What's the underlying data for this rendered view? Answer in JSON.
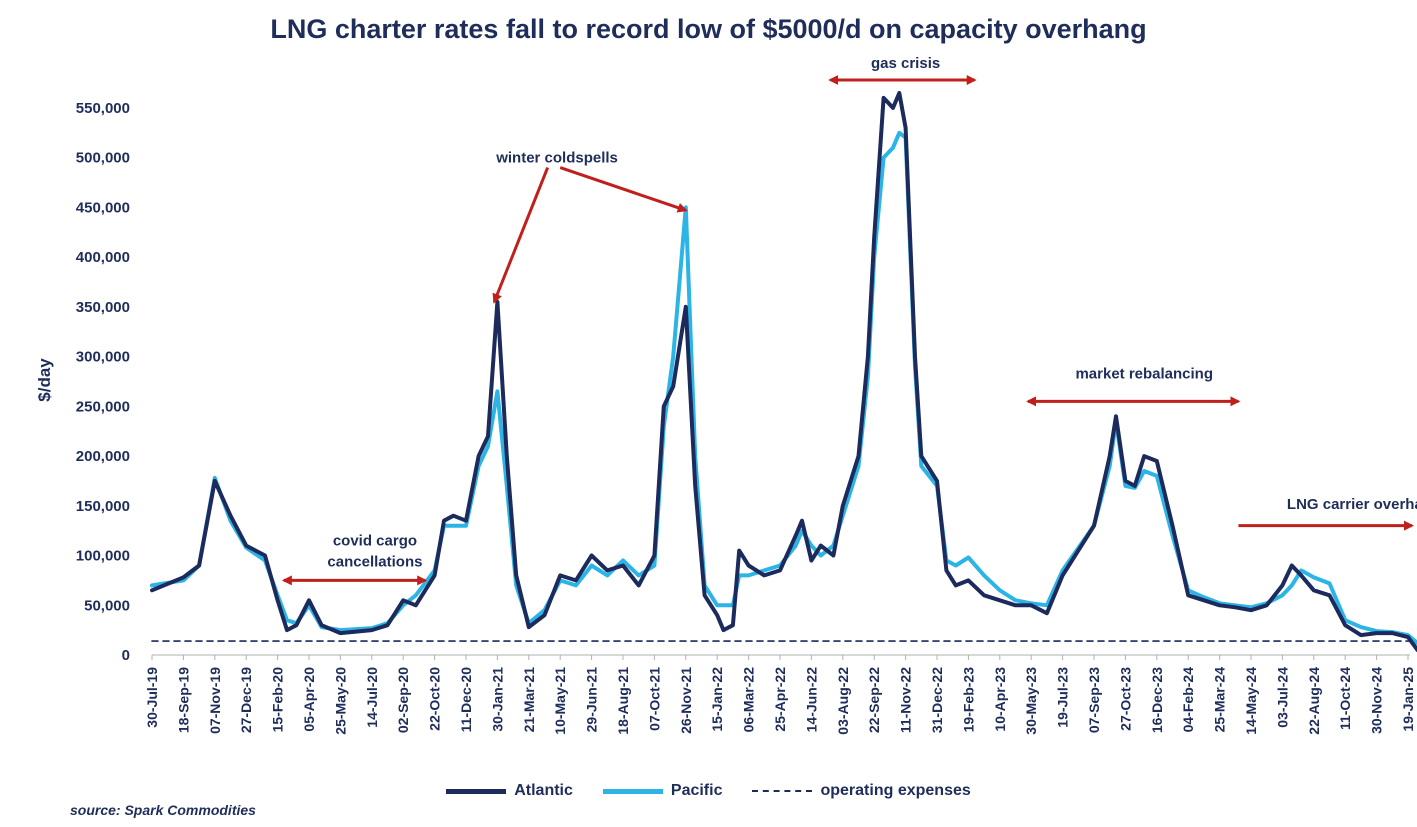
{
  "chart_data": {
    "type": "line",
    "title": "LNG charter rates fall to record low of $5000/d on capacity overhang",
    "ylabel": "$/day",
    "xlabel": "",
    "ylim": [
      0,
      570000
    ],
    "yticks": [
      0,
      50000,
      100000,
      150000,
      200000,
      250000,
      300000,
      350000,
      400000,
      450000,
      500000,
      550000
    ],
    "ytick_labels": [
      "0",
      "50,000",
      "100,000",
      "150,000",
      "200,000",
      "250,000",
      "300,000",
      "350,000",
      "400,000",
      "450,000",
      "500,000",
      "550,000"
    ],
    "x_tick_labels": [
      "30-Jul-19",
      "18-Sep-19",
      "07-Nov-19",
      "27-Dec-19",
      "15-Feb-20",
      "05-Apr-20",
      "25-May-20",
      "14-Jul-20",
      "02-Sep-20",
      "22-Oct-20",
      "11-Dec-20",
      "30-Jan-21",
      "21-Mar-21",
      "10-May-21",
      "29-Jun-21",
      "18-Aug-21",
      "07-Oct-21",
      "26-Nov-21",
      "15-Jan-22",
      "06-Mar-22",
      "25-Apr-22",
      "14-Jun-22",
      "03-Aug-22",
      "22-Sep-22",
      "11-Nov-22",
      "31-Dec-22",
      "19-Feb-23",
      "10-Apr-23",
      "30-May-23",
      "19-Jul-23",
      "07-Sep-23",
      "27-Oct-23",
      "16-Dec-23",
      "04-Feb-24",
      "25-Mar-24",
      "14-May-24",
      "03-Jul-24",
      "22-Aug-24",
      "11-Oct-24",
      "30-Nov-24",
      "19-Jan-25"
    ],
    "series": [
      {
        "name": "Atlantic",
        "color": "#1c2a5c",
        "points": [
          [
            0,
            65000
          ],
          [
            1,
            78000
          ],
          [
            1.5,
            90000
          ],
          [
            2,
            175000
          ],
          [
            2.5,
            140000
          ],
          [
            3,
            110000
          ],
          [
            3.6,
            100000
          ],
          [
            4,
            55000
          ],
          [
            4.3,
            25000
          ],
          [
            4.6,
            30000
          ],
          [
            5,
            55000
          ],
          [
            5.4,
            30000
          ],
          [
            6,
            22000
          ],
          [
            7,
            25000
          ],
          [
            7.5,
            30000
          ],
          [
            8,
            55000
          ],
          [
            8.4,
            50000
          ],
          [
            9,
            80000
          ],
          [
            9.3,
            135000
          ],
          [
            9.6,
            140000
          ],
          [
            10,
            135000
          ],
          [
            10.4,
            200000
          ],
          [
            10.7,
            220000
          ],
          [
            11,
            355000
          ],
          [
            11.3,
            200000
          ],
          [
            11.6,
            80000
          ],
          [
            12,
            28000
          ],
          [
            12.5,
            40000
          ],
          [
            13,
            80000
          ],
          [
            13.5,
            75000
          ],
          [
            14,
            100000
          ],
          [
            14.5,
            85000
          ],
          [
            15,
            90000
          ],
          [
            15.5,
            70000
          ],
          [
            16,
            100000
          ],
          [
            16.3,
            250000
          ],
          [
            16.6,
            270000
          ],
          [
            17,
            350000
          ],
          [
            17.3,
            170000
          ],
          [
            17.6,
            60000
          ],
          [
            18,
            40000
          ],
          [
            18.2,
            25000
          ],
          [
            18.5,
            30000
          ],
          [
            18.7,
            105000
          ],
          [
            19,
            90000
          ],
          [
            19.5,
            80000
          ],
          [
            20,
            85000
          ],
          [
            20.5,
            120000
          ],
          [
            20.7,
            135000
          ],
          [
            21,
            95000
          ],
          [
            21.3,
            110000
          ],
          [
            21.7,
            100000
          ],
          [
            22,
            150000
          ],
          [
            22.5,
            200000
          ],
          [
            22.8,
            300000
          ],
          [
            23,
            420000
          ],
          [
            23.3,
            560000
          ],
          [
            23.6,
            550000
          ],
          [
            23.8,
            565000
          ],
          [
            24,
            530000
          ],
          [
            24.3,
            300000
          ],
          [
            24.5,
            200000
          ],
          [
            25,
            175000
          ],
          [
            25.3,
            85000
          ],
          [
            25.6,
            70000
          ],
          [
            26,
            75000
          ],
          [
            26.5,
            60000
          ],
          [
            27,
            55000
          ],
          [
            27.5,
            50000
          ],
          [
            28,
            50000
          ],
          [
            28.5,
            42000
          ],
          [
            29,
            80000
          ],
          [
            30,
            130000
          ],
          [
            30.5,
            200000
          ],
          [
            30.7,
            240000
          ],
          [
            31,
            175000
          ],
          [
            31.3,
            170000
          ],
          [
            31.6,
            200000
          ],
          [
            32,
            195000
          ],
          [
            32.5,
            130000
          ],
          [
            33,
            60000
          ],
          [
            33.5,
            55000
          ],
          [
            34,
            50000
          ],
          [
            34.5,
            48000
          ],
          [
            35,
            45000
          ],
          [
            35.5,
            50000
          ],
          [
            36,
            70000
          ],
          [
            36.3,
            90000
          ],
          [
            36.6,
            80000
          ],
          [
            37,
            65000
          ],
          [
            37.5,
            60000
          ],
          [
            38,
            30000
          ],
          [
            38.5,
            20000
          ],
          [
            39,
            22000
          ],
          [
            39.5,
            22000
          ],
          [
            40,
            18000
          ],
          [
            40.3,
            5000
          ]
        ]
      },
      {
        "name": "Pacific",
        "color": "#2cb4e6",
        "points": [
          [
            0,
            70000
          ],
          [
            1,
            75000
          ],
          [
            1.5,
            90000
          ],
          [
            2,
            178000
          ],
          [
            2.5,
            135000
          ],
          [
            3,
            108000
          ],
          [
            3.6,
            95000
          ],
          [
            4,
            60000
          ],
          [
            4.3,
            35000
          ],
          [
            4.6,
            32000
          ],
          [
            5,
            50000
          ],
          [
            5.4,
            28000
          ],
          [
            6,
            25000
          ],
          [
            7,
            27000
          ],
          [
            7.5,
            32000
          ],
          [
            8,
            50000
          ],
          [
            8.4,
            60000
          ],
          [
            9,
            85000
          ],
          [
            9.3,
            130000
          ],
          [
            9.6,
            130000
          ],
          [
            10,
            130000
          ],
          [
            10.4,
            190000
          ],
          [
            10.7,
            210000
          ],
          [
            11,
            265000
          ],
          [
            11.3,
            170000
          ],
          [
            11.6,
            70000
          ],
          [
            12,
            32000
          ],
          [
            12.5,
            45000
          ],
          [
            13,
            75000
          ],
          [
            13.5,
            70000
          ],
          [
            14,
            90000
          ],
          [
            14.5,
            80000
          ],
          [
            15,
            95000
          ],
          [
            15.5,
            80000
          ],
          [
            16,
            90000
          ],
          [
            16.3,
            230000
          ],
          [
            16.6,
            300000
          ],
          [
            17,
            450000
          ],
          [
            17.3,
            200000
          ],
          [
            17.6,
            70000
          ],
          [
            18,
            50000
          ],
          [
            18.5,
            50000
          ],
          [
            18.7,
            80000
          ],
          [
            19,
            80000
          ],
          [
            19.5,
            85000
          ],
          [
            20,
            90000
          ],
          [
            20.5,
            110000
          ],
          [
            20.7,
            125000
          ],
          [
            21,
            110000
          ],
          [
            21.3,
            100000
          ],
          [
            21.7,
            110000
          ],
          [
            22,
            140000
          ],
          [
            22.5,
            190000
          ],
          [
            22.8,
            280000
          ],
          [
            23,
            400000
          ],
          [
            23.3,
            500000
          ],
          [
            23.6,
            510000
          ],
          [
            23.8,
            525000
          ],
          [
            24,
            520000
          ],
          [
            24.3,
            290000
          ],
          [
            24.5,
            190000
          ],
          [
            25,
            170000
          ],
          [
            25.3,
            95000
          ],
          [
            25.6,
            90000
          ],
          [
            26,
            98000
          ],
          [
            26.5,
            80000
          ],
          [
            27,
            65000
          ],
          [
            27.5,
            55000
          ],
          [
            28,
            52000
          ],
          [
            28.5,
            50000
          ],
          [
            29,
            85000
          ],
          [
            30,
            130000
          ],
          [
            30.5,
            190000
          ],
          [
            30.7,
            235000
          ],
          [
            31,
            170000
          ],
          [
            31.3,
            168000
          ],
          [
            31.6,
            185000
          ],
          [
            32,
            180000
          ],
          [
            32.5,
            120000
          ],
          [
            33,
            65000
          ],
          [
            33.5,
            58000
          ],
          [
            34,
            52000
          ],
          [
            34.5,
            50000
          ],
          [
            35,
            48000
          ],
          [
            35.5,
            52000
          ],
          [
            36,
            60000
          ],
          [
            36.3,
            70000
          ],
          [
            36.6,
            85000
          ],
          [
            37,
            78000
          ],
          [
            37.5,
            72000
          ],
          [
            38,
            35000
          ],
          [
            38.5,
            28000
          ],
          [
            39,
            24000
          ],
          [
            39.5,
            23000
          ],
          [
            40,
            20000
          ],
          [
            40.3,
            12000
          ]
        ]
      },
      {
        "name": "operating expenses",
        "color": "#1c2a5c",
        "style": "dashed",
        "points": [
          [
            0,
            14000
          ],
          [
            40.3,
            14000
          ]
        ]
      }
    ],
    "annotations": [
      {
        "text": "covid cargo",
        "x": 7.1,
        "y": 110000,
        "arrow": "none"
      },
      {
        "text": "cancellations",
        "x": 7.1,
        "y": 89000,
        "arrow": "none"
      },
      {
        "text": "winter coldspells",
        "x": 12.9,
        "y": 495000,
        "arrow": "none"
      },
      {
        "text": "gas crisis",
        "x": 24.0,
        "y": 590000,
        "arrow": "none"
      },
      {
        "text": "market rebalancing",
        "x": 31.6,
        "y": 278000,
        "arrow": "none"
      },
      {
        "text": "LNG carrier overhang",
        "x": 38.6,
        "y": 147000,
        "arrow": "none"
      }
    ],
    "arrows": [
      {
        "kind": "double",
        "x1": 4.2,
        "x2": 8.7,
        "y": 75000
      },
      {
        "kind": "single",
        "x1": 12.6,
        "y1": 490000,
        "x2": 10.9,
        "y2": 355000
      },
      {
        "kind": "single",
        "x1": 13.0,
        "y1": 490000,
        "x2": 17.0,
        "y2": 447000
      },
      {
        "kind": "double",
        "x1": 21.6,
        "x2": 26.2,
        "y": 578000
      },
      {
        "kind": "double",
        "x1": 27.9,
        "x2": 34.6,
        "y": 255000
      },
      {
        "kind": "single",
        "x1": 34.6,
        "y1": 130000,
        "x2": 41.2,
        "y2": 130000
      }
    ],
    "grid": false,
    "legend_position": "bottom"
  },
  "legend": {
    "atlantic": "Atlantic",
    "pacific": "Pacific",
    "opex": "operating expenses"
  },
  "source": "source: Spark Commodities"
}
